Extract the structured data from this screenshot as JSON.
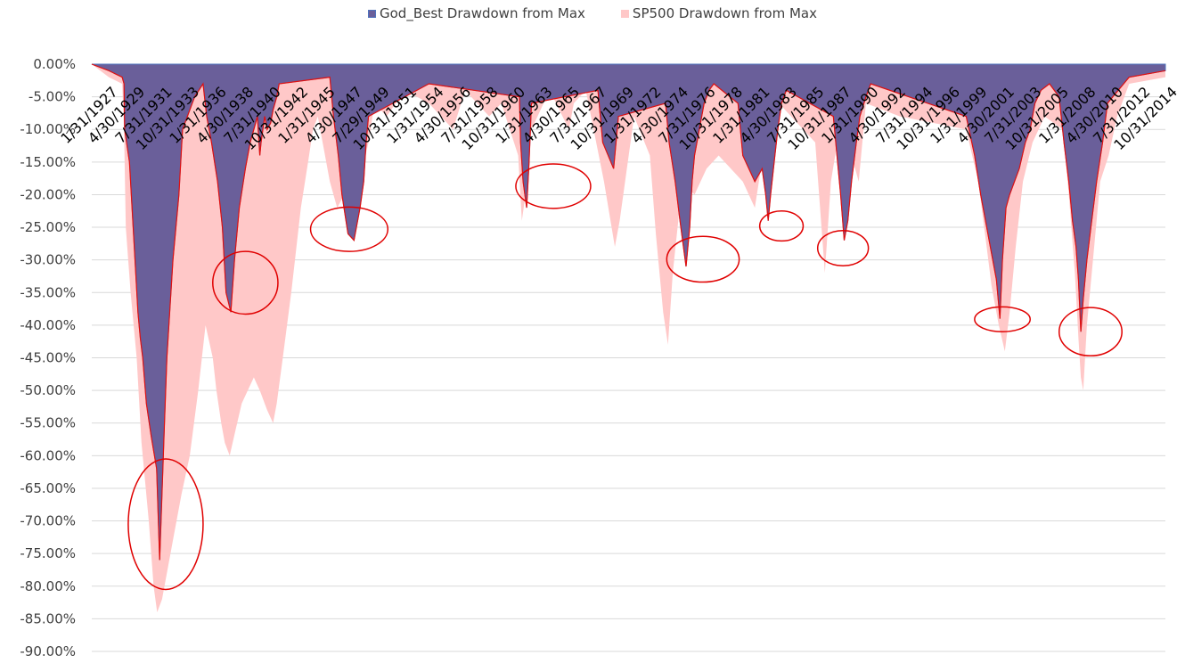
{
  "legend": {
    "god_label": "God_Best Drawdown from Max",
    "sp_label": "SP500 Drawdown from Max"
  },
  "colors": {
    "god_fill": "#6a5f9a",
    "god_edge": "#4f73bd",
    "sp_fill": "#ffc8c8",
    "sp_line": "#e01010",
    "circle": "#e00000",
    "grid": "#d9d9d9"
  },
  "chart_data": {
    "type": "area",
    "series": [
      {
        "name": "God_Best Drawdown from Max",
        "x": [
          1927.08,
          1928.5,
          1929.6,
          1929.75,
          1929.8,
          1930.2,
          1930.6,
          1930.9,
          1931.1,
          1931.3,
          1931.6,
          1932.0,
          1932.45,
          1932.7,
          1933.1,
          1933.3,
          1933.8,
          1934.3,
          1934.6,
          1935.6,
          1936.3,
          1936.6,
          1937.0,
          1937.5,
          1937.9,
          1938.2,
          1938.6,
          1938.9,
          1939.3,
          1939.8,
          1940.2,
          1940.5,
          1940.8,
          1941.0,
          1941.1,
          1941.4,
          1941.6,
          1941.9,
          1942.1,
          1942.4,
          1942.6,
          1946.8,
          1947.1,
          1947.5,
          1947.8,
          1948.3,
          1948.8,
          1949.3,
          1949.6,
          1949.8,
          1950.0,
          1955.0,
          1962.5,
          1962.6,
          1962.8,
          1963.1,
          1963.3,
          1963.5,
          1969.0,
          1969.4,
          1970.3,
          1970.7,
          1974.6,
          1974.9,
          1975.4,
          1975.8,
          1976.3,
          1976.6,
          1976.8,
          1977.0,
          1977.4,
          1977.8,
          1978.2,
          1978.6,
          1980.6,
          1981.0,
          1982.0,
          1982.6,
          1982.9,
          1983.1,
          1983.3,
          1983.6,
          1983.9,
          1984.2,
          1984.6,
          1988.5,
          1988.8,
          1989.1,
          1989.4,
          1989.7,
          1990.0,
          1990.4,
          1990.7,
          1991.2,
          1991.6,
          1999.5,
          2000.2,
          2000.7,
          2001.1,
          2001.5,
          2002.0,
          2002.3,
          2002.5,
          2002.8,
          2003.1,
          2003.5,
          2003.9,
          2004.4,
          2004.8,
          2005.2,
          2005.7,
          2006.4,
          2007.2,
          2007.6,
          2008.0,
          2008.3,
          2008.6,
          2008.8,
          2009.0,
          2009.2,
          2009.5,
          2009.9,
          2010.3,
          2010.8,
          2011.2,
          2013.0,
          2016.0
        ],
        "y": [
          0,
          -1,
          -2,
          -3,
          -10,
          -15,
          -28,
          -38,
          -42,
          -45,
          -52,
          -57,
          -62,
          -76,
          -55,
          -45,
          -30,
          -20,
          -10,
          -5,
          -3,
          -8,
          -12,
          -18,
          -25,
          -35,
          -38,
          -30,
          -22,
          -16,
          -12,
          -10,
          -8,
          -14,
          -12,
          -8,
          -10,
          -9,
          -7,
          -5,
          -3,
          -2,
          -8,
          -14,
          -20,
          -26,
          -27,
          -22,
          -18,
          -12,
          -8,
          -3,
          -5,
          -12,
          -18,
          -22,
          -15,
          -6,
          -4,
          -12,
          -16,
          -8,
          -6,
          -12,
          -18,
          -24,
          -31,
          -25,
          -18,
          -14,
          -10,
          -6,
          -4,
          -3,
          -6,
          -14,
          -18,
          -16,
          -20,
          -24,
          -20,
          -15,
          -10,
          -6,
          -4,
          -8,
          -14,
          -20,
          -27,
          -24,
          -18,
          -12,
          -8,
          -5,
          -3,
          -8,
          -14,
          -20,
          -24,
          -28,
          -33,
          -39,
          -30,
          -22,
          -20,
          -18,
          -16,
          -12,
          -10,
          -6,
          -4,
          -3,
          -5,
          -12,
          -18,
          -24,
          -28,
          -33,
          -41,
          -36,
          -30,
          -24,
          -18,
          -12,
          -6,
          -2,
          -1
        ]
      },
      {
        "name": "SP500 Drawdown from Max",
        "x": [
          1927.08,
          1928.5,
          1929.6,
          1929.75,
          1929.9,
          1930.3,
          1930.8,
          1931.2,
          1931.8,
          1932.2,
          1932.5,
          1932.9,
          1933.3,
          1933.9,
          1934.5,
          1935.2,
          1935.9,
          1936.5,
          1937.1,
          1937.4,
          1937.8,
          1938.1,
          1938.5,
          1939.0,
          1939.5,
          1940.0,
          1940.5,
          1941.0,
          1941.6,
          1942.1,
          1942.4,
          1942.9,
          1943.6,
          1944.4,
          1945.0,
          1945.4,
          1945.8,
          1946.2,
          1946.8,
          1947.4,
          1948.0,
          1948.6,
          1949.0,
          1949.5,
          1950.0,
          1950.5,
          1951.5,
          1953.0,
          1955.0,
          1957.0,
          1958.0,
          1960.0,
          1961.0,
          1962.4,
          1962.7,
          1963.0,
          1963.5,
          1965.0,
          1966.6,
          1967.0,
          1968.0,
          1969.5,
          1970.4,
          1970.8,
          1972.0,
          1973.3,
          1973.8,
          1974.4,
          1974.8,
          1975.2,
          1976.0,
          1977.0,
          1978.0,
          1979.0,
          1981.0,
          1982.0,
          1982.5,
          1983.0,
          1984.0,
          1985.0,
          1987.0,
          1987.8,
          1988.3,
          1989.0,
          1990.0,
          1990.6,
          1991.2,
          1994.0,
          1999.5,
          2000.5,
          2001.2,
          2001.6,
          2002.2,
          2002.7,
          2003.1,
          2003.6,
          2004.2,
          2005.0,
          2006.0,
          2007.5,
          2008.0,
          2008.5,
          2008.8,
          2009.0,
          2009.2,
          2009.5,
          2010.0,
          2010.6,
          2011.3,
          2012.0,
          2013.0,
          2016.0
        ],
        "y": [
          0,
          -2,
          -3,
          -10,
          -25,
          -35,
          -45,
          -58,
          -70,
          -80,
          -84,
          -82,
          -78,
          -72,
          -66,
          -60,
          -50,
          -40,
          -45,
          -50,
          -55,
          -58,
          -60,
          -56,
          -52,
          -50,
          -48,
          -50,
          -53,
          -55,
          -52,
          -45,
          -35,
          -22,
          -15,
          -10,
          -8,
          -12,
          -18,
          -22,
          -20,
          -18,
          -22,
          -16,
          -12,
          -6,
          -8,
          -4,
          -6,
          -10,
          -4,
          -8,
          -6,
          -14,
          -24,
          -20,
          -10,
          -4,
          -10,
          -6,
          -4,
          -18,
          -28,
          -24,
          -8,
          -14,
          -26,
          -38,
          -43,
          -32,
          -18,
          -20,
          -16,
          -14,
          -18,
          -22,
          -16,
          -10,
          -6,
          -8,
          -12,
          -32,
          -18,
          -10,
          -14,
          -18,
          -6,
          -8,
          -10,
          -18,
          -28,
          -34,
          -40,
          -44,
          -38,
          -28,
          -18,
          -12,
          -8,
          -10,
          -20,
          -32,
          -42,
          -48,
          -50,
          -40,
          -30,
          -18,
          -14,
          -8,
          -3,
          -2
        ]
      }
    ],
    "ylim": [
      -90,
      0
    ],
    "yticks": [
      "0.00%",
      "-5.00%",
      "-10.00%",
      "-15.00%",
      "-20.00%",
      "-25.00%",
      "-30.00%",
      "-35.00%",
      "-40.00%",
      "-45.00%",
      "-50.00%",
      "-55.00%",
      "-60.00%",
      "-65.00%",
      "-70.00%",
      "-75.00%",
      "-80.00%",
      "-85.00%",
      "-90.00%"
    ],
    "ytick_values": [
      0,
      -5,
      -10,
      -15,
      -20,
      -25,
      -30,
      -35,
      -40,
      -45,
      -50,
      -55,
      -60,
      -65,
      -70,
      -75,
      -80,
      -85,
      -90
    ],
    "xtick_labels": [
      "1/31/1927",
      "4/30/1929",
      "7/31/1931",
      "10/31/1933",
      "1/31/1936",
      "4/30/1938",
      "7/31/1940",
      "10/31/1942",
      "1/31/1945",
      "4/30/1947",
      "7/29/1949",
      "10/31/1951",
      "1/31/1954",
      "4/30/1956",
      "7/31/1958",
      "10/31/1960",
      "1/31/1963",
      "4/30/1965",
      "7/31/1967",
      "10/31/1969",
      "1/31/1972",
      "4/30/1974",
      "7/31/1976",
      "10/31/1978",
      "1/31/1981",
      "4/30/1983",
      "7/31/1985",
      "10/31/1987",
      "1/31/1990",
      "4/30/1992",
      "7/31/1994",
      "10/31/1996",
      "1/31/1999",
      "4/30/2001",
      "7/31/2003",
      "10/31/2005",
      "1/31/2008",
      "4/30/2010",
      "7/31/2012",
      "10/31/2014"
    ],
    "xtick_values": [
      1927.08,
      1929.33,
      1931.58,
      1933.83,
      1936.08,
      1938.33,
      1940.58,
      1942.83,
      1945.08,
      1947.33,
      1949.58,
      1951.83,
      1954.08,
      1956.33,
      1958.58,
      1960.83,
      1963.08,
      1965.33,
      1967.58,
      1969.83,
      1972.08,
      1974.33,
      1976.58,
      1978.83,
      1981.08,
      1983.33,
      1985.58,
      1987.83,
      1990.08,
      1992.33,
      1994.58,
      1996.83,
      1999.08,
      2001.33,
      2003.58,
      2005.83,
      2008.08,
      2010.33,
      2012.58,
      2014.83
    ],
    "xlim": [
      1927.08,
      2016.0
    ],
    "highlights": [
      {
        "x": 1933.2,
        "y": -70.5,
        "rx": 3.1,
        "ry": 10
      },
      {
        "x": 1939.8,
        "y": -33.5,
        "rx": 2.7,
        "ry": 4.8
      },
      {
        "x": 1948.4,
        "y": -25.3,
        "rx": 3.2,
        "ry": 3.4
      },
      {
        "x": 1965.3,
        "y": -18.7,
        "rx": 3.1,
        "ry": 3.4
      },
      {
        "x": 1977.7,
        "y": -29.9,
        "rx": 3.0,
        "ry": 3.5
      },
      {
        "x": 1984.2,
        "y": -24.8,
        "rx": 1.8,
        "ry": 2.3
      },
      {
        "x": 1989.3,
        "y": -28.2,
        "rx": 2.1,
        "ry": 2.7
      },
      {
        "x": 2002.5,
        "y": -39.1,
        "rx": 2.3,
        "ry": 1.9
      },
      {
        "x": 2009.8,
        "y": -41.0,
        "rx": 2.6,
        "ry": 3.7
      }
    ],
    "grid": true,
    "legend_position": "top"
  }
}
